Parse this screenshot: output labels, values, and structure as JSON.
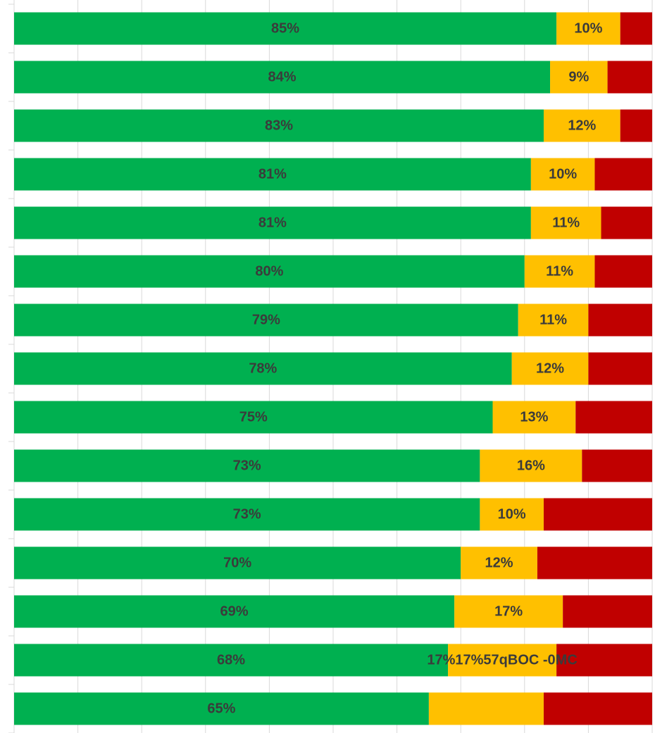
{
  "chart_data": {
    "type": "bar",
    "orientation": "horizontal",
    "stacked": true,
    "normalized": true,
    "grid": true,
    "xlim": [
      0,
      100
    ],
    "colors": [
      "#00b050",
      "#ffc000",
      "#c00000"
    ],
    "series": [
      {
        "values": [
          85,
          84,
          83,
          81,
          81,
          80,
          79,
          78,
          75,
          73,
          73,
          70,
          69,
          68,
          65
        ],
        "labels": [
          "85%",
          "84%",
          "83%",
          "81%",
          "81%",
          "80%",
          "79%",
          "78%",
          "75%",
          "73%",
          "73%",
          "70%",
          "69%",
          "68%",
          "65%"
        ]
      },
      {
        "values": [
          10,
          9,
          12,
          10,
          11,
          11,
          11,
          12,
          13,
          16,
          10,
          12,
          17,
          17,
          18
        ],
        "labels": [
          "10%",
          "9%",
          "12%",
          "10%",
          "11%",
          "11%",
          "11%",
          "12%",
          "13%",
          "16%",
          "10%",
          "12%",
          "17%",
          "17%17%57qBOC -0MC",
          ""
        ]
      },
      {
        "values": [
          5,
          7,
          5,
          9,
          8,
          9,
          10,
          10,
          12,
          11,
          17,
          18,
          14,
          15,
          17
        ],
        "labels": [
          "",
          "",
          "",
          "",
          "",
          "",
          "",
          "",
          "",
          "",
          "",
          "",
          "",
          "",
          ""
        ]
      }
    ]
  }
}
